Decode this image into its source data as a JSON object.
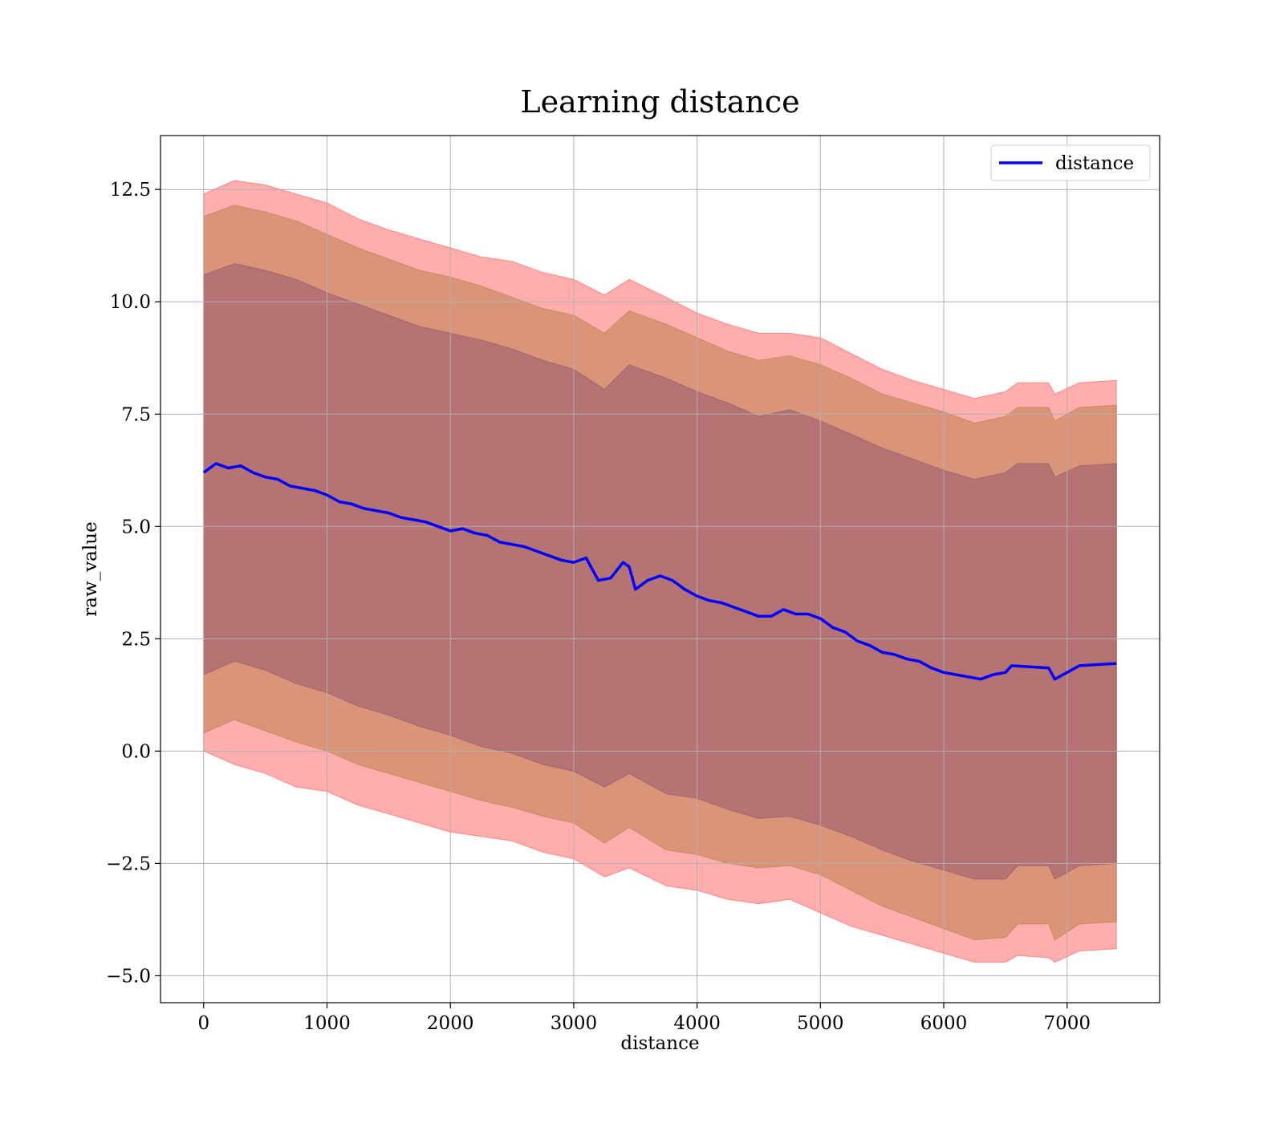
{
  "chart_data": {
    "type": "line",
    "title": "Learning distance",
    "xlabel": "distance",
    "ylabel": "raw_value",
    "xlim": [
      -350,
      7750
    ],
    "ylim": [
      -5.6,
      13.7
    ],
    "xticks": [
      0,
      1000,
      2000,
      3000,
      4000,
      5000,
      6000,
      7000
    ],
    "xtick_labels": [
      "0",
      "1000",
      "2000",
      "3000",
      "4000",
      "5000",
      "6000",
      "7000"
    ],
    "yticks": [
      -5.0,
      -2.5,
      0.0,
      2.5,
      5.0,
      7.5,
      10.0,
      12.5
    ],
    "ytick_labels": [
      "−5.0",
      "−2.5",
      "0.0",
      "2.5",
      "5.0",
      "7.5",
      "10.0",
      "12.5"
    ],
    "grid": true,
    "legend_position": "top-right",
    "legend": [
      "distance"
    ],
    "colors": {
      "line": "#0000ff",
      "band_outer": "#ff0000",
      "band_middle": "#8b6508",
      "band_inner": "#6b2a6b"
    },
    "series": [
      {
        "name": "distance",
        "x": [
          0,
          100,
          200,
          300,
          400,
          500,
          600,
          700,
          800,
          900,
          1000,
          1100,
          1200,
          1300,
          1400,
          1500,
          1600,
          1700,
          1800,
          1900,
          2000,
          2100,
          2200,
          2300,
          2400,
          2500,
          2600,
          2700,
          2800,
          2900,
          3000,
          3100,
          3200,
          3300,
          3400,
          3450,
          3500,
          3600,
          3700,
          3800,
          3900,
          4000,
          4100,
          4200,
          4300,
          4400,
          4500,
          4600,
          4700,
          4800,
          4900,
          5000,
          5100,
          5200,
          5300,
          5400,
          5500,
          5600,
          5700,
          5800,
          5900,
          6000,
          6100,
          6200,
          6300,
          6400,
          6500,
          6550,
          6850,
          6900,
          7100,
          7400
        ],
        "y": [
          6.2,
          6.4,
          6.3,
          6.35,
          6.2,
          6.1,
          6.05,
          5.9,
          5.85,
          5.8,
          5.7,
          5.55,
          5.5,
          5.4,
          5.35,
          5.3,
          5.2,
          5.15,
          5.1,
          5.0,
          4.9,
          4.95,
          4.85,
          4.8,
          4.65,
          4.6,
          4.55,
          4.45,
          4.35,
          4.25,
          4.2,
          4.3,
          3.8,
          3.85,
          4.2,
          4.1,
          3.6,
          3.8,
          3.9,
          3.8,
          3.6,
          3.45,
          3.35,
          3.3,
          3.2,
          3.1,
          3.0,
          3.0,
          3.15,
          3.05,
          3.05,
          2.95,
          2.75,
          2.65,
          2.45,
          2.35,
          2.2,
          2.15,
          2.05,
          2.0,
          1.85,
          1.75,
          1.7,
          1.65,
          1.6,
          1.7,
          1.75,
          1.9,
          1.85,
          1.6,
          1.9,
          1.95
        ]
      }
    ],
    "bands": [
      {
        "x": [
          0,
          250,
          500,
          750,
          1000,
          1250,
          1500,
          1750,
          2000,
          2250,
          2500,
          2750,
          3000,
          3250,
          3450,
          3750,
          4000,
          4250,
          4500,
          4750,
          5000,
          5250,
          5500,
          5750,
          6000,
          6250,
          6500,
          6600,
          6850,
          6900,
          7100,
          7400
        ],
        "lower": [
          0.0,
          -0.3,
          -0.5,
          -0.8,
          -0.9,
          -1.2,
          -1.4,
          -1.6,
          -1.8,
          -1.9,
          -2.0,
          -2.25,
          -2.4,
          -2.8,
          -2.6,
          -3.0,
          -3.1,
          -3.3,
          -3.4,
          -3.3,
          -3.6,
          -3.9,
          -4.1,
          -4.3,
          -4.5,
          -4.7,
          -4.7,
          -4.55,
          -4.6,
          -4.7,
          -4.45,
          -4.4
        ],
        "upper": [
          12.4,
          12.7,
          12.6,
          12.4,
          12.2,
          11.85,
          11.6,
          11.4,
          11.2,
          11.0,
          10.9,
          10.65,
          10.5,
          10.15,
          10.5,
          10.1,
          9.75,
          9.5,
          9.3,
          9.3,
          9.2,
          8.85,
          8.5,
          8.25,
          8.05,
          7.85,
          8.0,
          8.2,
          8.2,
          7.95,
          8.2,
          8.25
        ]
      },
      {
        "x": [
          0,
          250,
          500,
          750,
          1000,
          1250,
          1500,
          1750,
          2000,
          2250,
          2500,
          2750,
          3000,
          3250,
          3450,
          3750,
          4000,
          4250,
          4500,
          4750,
          5000,
          5250,
          5500,
          5750,
          6000,
          6250,
          6500,
          6600,
          6850,
          6900,
          7100,
          7400
        ],
        "lower": [
          0.4,
          0.7,
          0.45,
          0.2,
          0.0,
          -0.3,
          -0.5,
          -0.7,
          -0.9,
          -1.1,
          -1.25,
          -1.45,
          -1.6,
          -2.05,
          -1.7,
          -2.2,
          -2.3,
          -2.5,
          -2.6,
          -2.55,
          -2.75,
          -3.1,
          -3.45,
          -3.7,
          -3.95,
          -4.2,
          -4.15,
          -3.85,
          -3.85,
          -4.2,
          -3.85,
          -3.8
        ],
        "upper": [
          11.9,
          12.15,
          12.0,
          11.8,
          11.5,
          11.2,
          10.95,
          10.7,
          10.55,
          10.35,
          10.1,
          9.85,
          9.7,
          9.3,
          9.8,
          9.5,
          9.2,
          8.9,
          8.7,
          8.8,
          8.6,
          8.3,
          7.95,
          7.75,
          7.55,
          7.3,
          7.45,
          7.65,
          7.65,
          7.35,
          7.65,
          7.7
        ]
      },
      {
        "x": [
          0,
          250,
          500,
          750,
          1000,
          1250,
          1500,
          1750,
          2000,
          2250,
          2500,
          2750,
          3000,
          3250,
          3450,
          3750,
          4000,
          4250,
          4500,
          4750,
          5000,
          5250,
          5500,
          5750,
          6000,
          6250,
          6500,
          6600,
          6850,
          6900,
          7100,
          7400
        ],
        "lower": [
          1.7,
          2.0,
          1.8,
          1.5,
          1.3,
          1.0,
          0.8,
          0.55,
          0.35,
          0.1,
          -0.05,
          -0.3,
          -0.45,
          -0.8,
          -0.5,
          -0.95,
          -1.05,
          -1.3,
          -1.5,
          -1.45,
          -1.65,
          -1.9,
          -2.2,
          -2.45,
          -2.65,
          -2.85,
          -2.85,
          -2.55,
          -2.55,
          -2.85,
          -2.55,
          -2.5
        ],
        "upper": [
          10.6,
          10.85,
          10.7,
          10.5,
          10.2,
          9.95,
          9.7,
          9.45,
          9.3,
          9.15,
          8.95,
          8.7,
          8.5,
          8.05,
          8.6,
          8.3,
          8.0,
          7.75,
          7.45,
          7.6,
          7.35,
          7.05,
          6.75,
          6.5,
          6.25,
          6.05,
          6.2,
          6.4,
          6.4,
          6.1,
          6.35,
          6.4
        ]
      }
    ]
  }
}
